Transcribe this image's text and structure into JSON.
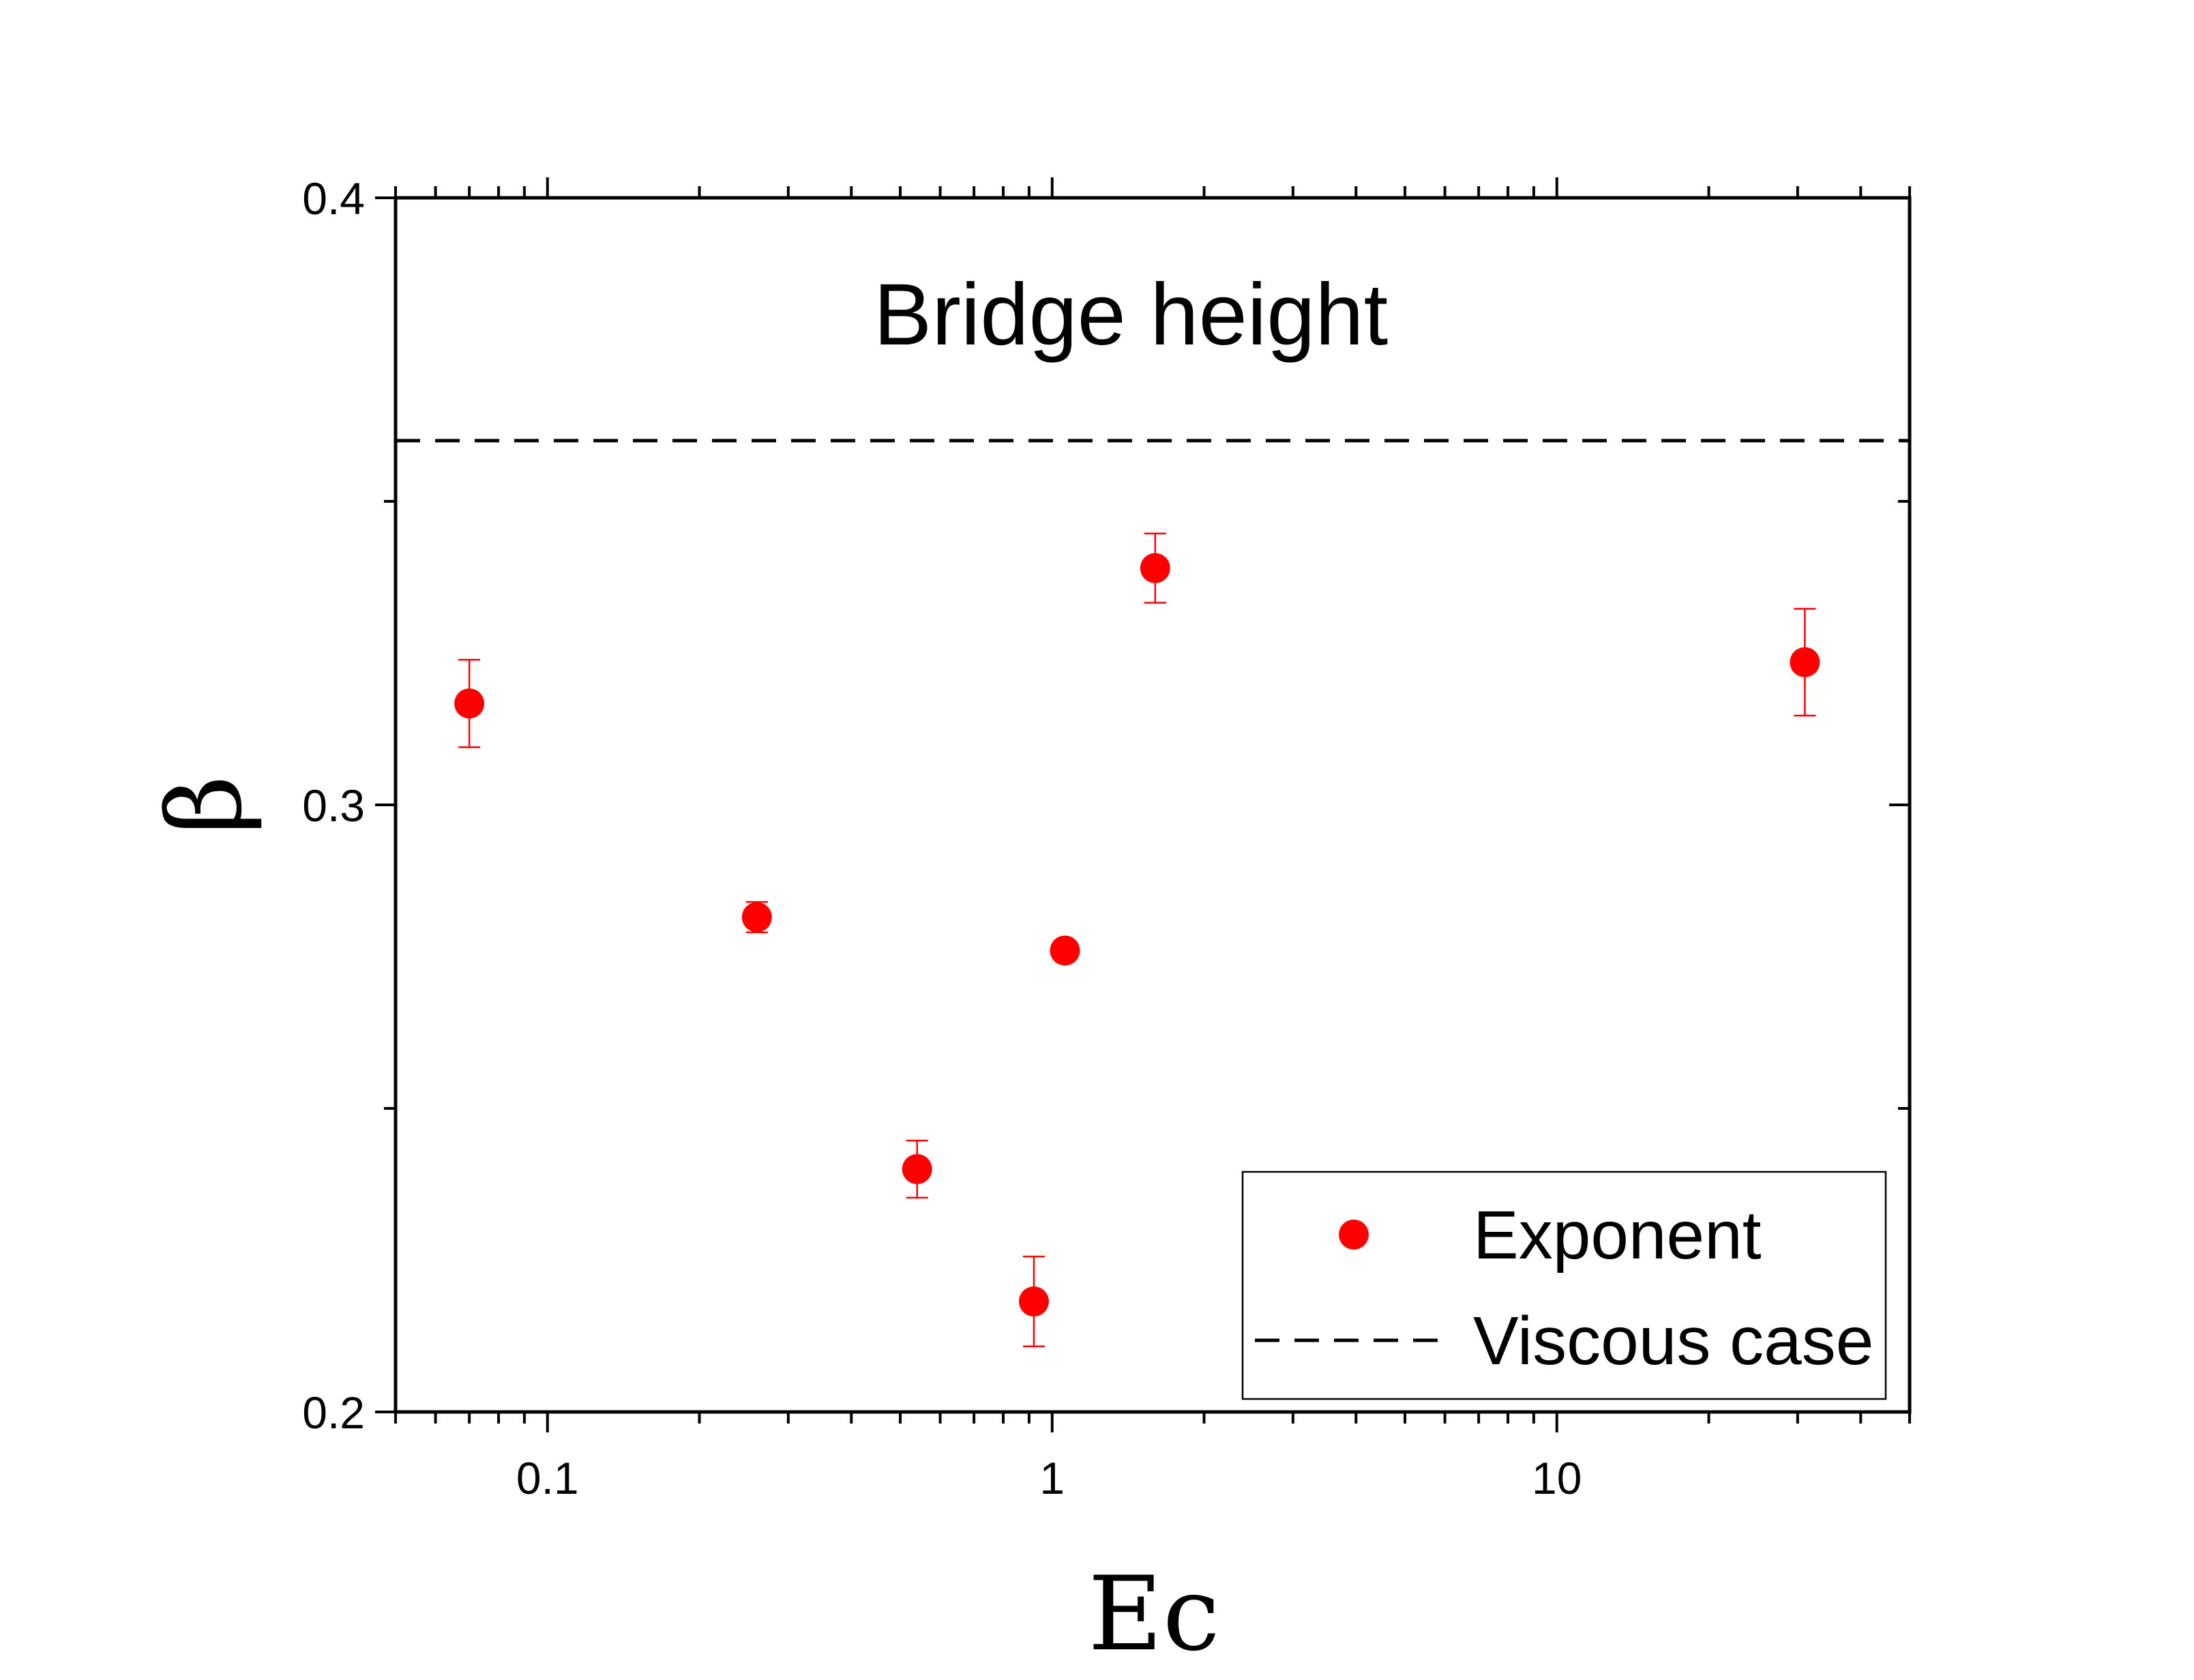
{
  "chart_data": {
    "type": "scatter",
    "title": "",
    "annotation": "Bridge height",
    "xlabel": "Ec",
    "ylabel": "β",
    "xscale": "log",
    "xlim": [
      0.05,
      50
    ],
    "ylim": [
      0.2,
      0.4
    ],
    "x_ticks": [
      {
        "value": 0.1,
        "label": "0.1"
      },
      {
        "value": 1,
        "label": "1"
      },
      {
        "value": 10,
        "label": "10"
      }
    ],
    "y_ticks": [
      {
        "value": 0.2,
        "label": "0.2"
      },
      {
        "value": 0.3,
        "label": "0.3"
      },
      {
        "value": 0.4,
        "label": "0.4"
      }
    ],
    "y_minor_ticks": [
      0.25,
      0.35
    ],
    "grid": false,
    "legend_position": "bottom-right",
    "series": [
      {
        "name": "Exponent",
        "type": "scatter",
        "color": "#ff0000",
        "points": [
          {
            "x": 0.07,
            "y": 0.3167,
            "err": 0.0072
          },
          {
            "x": 0.26,
            "y": 0.2815,
            "err": 0.0025
          },
          {
            "x": 0.54,
            "y": 0.24,
            "err": 0.0047
          },
          {
            "x": 0.92,
            "y": 0.2182,
            "err": 0.0074
          },
          {
            "x": 1.06,
            "y": 0.276,
            "err": 0.0
          },
          {
            "x": 1.6,
            "y": 0.339,
            "err": 0.0057
          },
          {
            "x": 31,
            "y": 0.3235,
            "err": 0.0088
          }
        ]
      },
      {
        "name": "Viscous case",
        "type": "hline",
        "color": "#000000",
        "dash": "dashed",
        "y": 0.36
      }
    ]
  }
}
